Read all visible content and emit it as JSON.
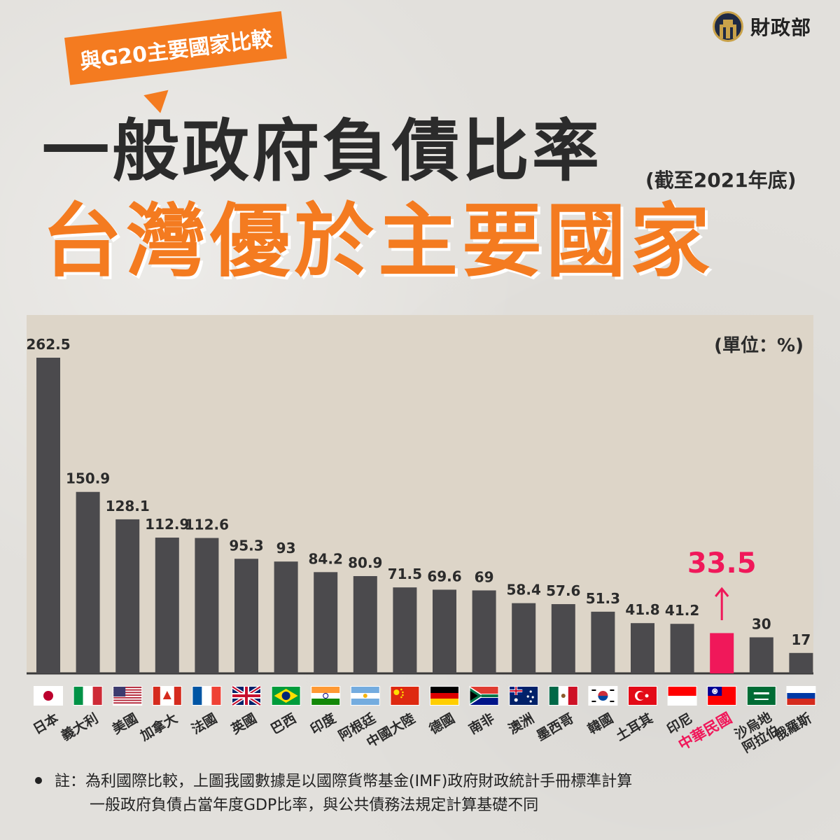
{
  "brand": {
    "name": "財政部",
    "logo_icon": "ministry-seal-icon"
  },
  "bubble": {
    "text": "與G20主要國家比較"
  },
  "title": {
    "main": "一般政府負債比率",
    "note": "(截至2021年底)",
    "headline": "台灣優於主要國家"
  },
  "chart_data": {
    "type": "bar",
    "unit_label": "(單位：%)",
    "categories": [
      "日本",
      "義大利",
      "美國",
      "加拿大",
      "法國",
      "英國",
      "巴西",
      "印度",
      "阿根廷",
      "中國大陸",
      "德國",
      "南非",
      "澳洲",
      "墨西哥",
      "韓國",
      "土耳其",
      "印尼",
      "中華民國",
      "沙烏地阿拉伯",
      "俄羅斯"
    ],
    "values": [
      262.5,
      150.9,
      128.1,
      112.9,
      112.6,
      95.3,
      93,
      84.2,
      80.9,
      71.5,
      69.6,
      69,
      58.4,
      57.6,
      51.3,
      41.8,
      41.2,
      33.5,
      30,
      17
    ],
    "value_labels": [
      "262.5",
      "150.9",
      "128.1",
      "112.9",
      "112.6",
      "95.3",
      "93",
      "84.2",
      "80.9",
      "71.5",
      "69.6",
      "69",
      "58.4",
      "57.6",
      "51.3",
      "41.8",
      "41.2",
      "33.5",
      "30",
      "17"
    ],
    "highlight_index": 17,
    "ylim": [
      0,
      262.5
    ],
    "colors": {
      "bar": "#4b4a4d",
      "highlight": "#f0185a",
      "axis": "#3a3a3a"
    },
    "flags": [
      "japan-flag-icon",
      "italy-flag-icon",
      "usa-flag-icon",
      "canada-flag-icon",
      "france-flag-icon",
      "uk-flag-icon",
      "brazil-flag-icon",
      "india-flag-icon",
      "argentina-flag-icon",
      "china-flag-icon",
      "germany-flag-icon",
      "south-africa-flag-icon",
      "australia-flag-icon",
      "mexico-flag-icon",
      "korea-flag-icon",
      "turkey-flag-icon",
      "indonesia-flag-icon",
      "roc-flag-icon",
      "saudi-arabia-flag-icon",
      "russia-flag-icon"
    ]
  },
  "footnote": {
    "line1": "註：為利國際比較，上圖我國數據是以國際貨幣基金(IMF)政府財政統計手冊標準計算",
    "line2": "一般政府負債占當年度GDP比率，與公共債務法規定計算基礎不同"
  }
}
